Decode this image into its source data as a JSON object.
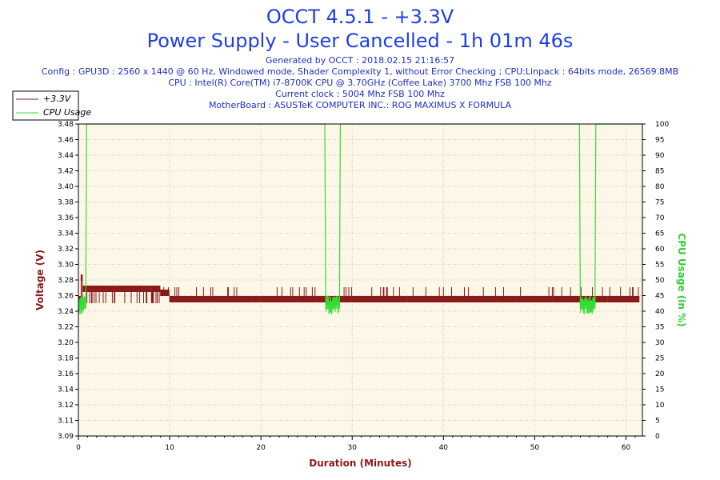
{
  "chart_data": {
    "type": "line",
    "title": "OCCT 4.5.1 - +3.3V",
    "subtitle": "Power Supply - User Cancelled - 1h 01m 46s",
    "info_lines": [
      "Generated by OCCT : 2018.02.15 21:16:57",
      "Config : GPU3D : 2560 x 1440 @ 60 Hz, Windowed mode, Shader Complexity 1, without Error Checking ; CPU:Linpack : 64bits mode, 26569.8MB",
      "CPU : Intel(R) Core(TM) i7-8700K CPU @ 3.70GHz (Coffee Lake) 3700 Mhz FSB 100 Mhz",
      "Current clock : 5004 Mhz FSB 100 Mhz",
      "MotherBoard : ASUSTeK COMPUTER INC.: ROG MAXIMUS X FORMULA"
    ],
    "xlabel": "Duration (Minutes)",
    "ylabel": "Voltage (V)",
    "y2label": "CPU Usage (in %)",
    "xlim": [
      0,
      61.8
    ],
    "ylim": [
      3.09,
      3.48
    ],
    "y2lim": [
      0,
      100
    ],
    "x_ticks": [
      "0",
      "10",
      "20",
      "30",
      "40",
      "50",
      "60"
    ],
    "y_ticks": [
      "3.09",
      "3.11",
      "3.12",
      "3.14",
      "3.16",
      "3.18",
      "3.20",
      "3.22",
      "3.24",
      "3.26",
      "3.28",
      "3.30",
      "3.32",
      "3.34",
      "3.36",
      "3.38",
      "3.40",
      "3.42",
      "3.44",
      "3.46",
      "3.48"
    ],
    "y2_ticks": [
      "0",
      "5",
      "10",
      "15",
      "20",
      "25",
      "30",
      "35",
      "40",
      "45",
      "50",
      "55",
      "60",
      "65",
      "70",
      "75",
      "80",
      "85",
      "90",
      "95",
      "100"
    ],
    "grid": true,
    "legend_position": "top-left",
    "series": [
      {
        "name": "+3.3V",
        "color": "#8b1a1a",
        "axis": "left",
        "x": [
          0,
          0.3,
          0.5,
          1,
          2,
          3,
          4,
          5,
          6,
          7,
          8,
          9,
          10,
          11,
          12,
          13,
          14,
          15,
          16,
          17,
          18,
          19,
          20,
          22,
          24,
          26,
          27.2,
          28.6,
          30,
          32,
          34,
          36,
          38,
          40,
          42,
          44,
          46,
          48,
          50,
          52,
          54,
          55,
          56.7,
          58,
          60,
          61.5
        ],
        "y": [
          3.262,
          3.29,
          3.276,
          3.276,
          3.276,
          3.276,
          3.276,
          3.276,
          3.276,
          3.276,
          3.276,
          3.27,
          3.262,
          3.262,
          3.262,
          3.262,
          3.262,
          3.262,
          3.262,
          3.262,
          3.262,
          3.262,
          3.262,
          3.262,
          3.262,
          3.262,
          3.262,
          3.262,
          3.262,
          3.262,
          3.262,
          3.262,
          3.262,
          3.262,
          3.262,
          3.262,
          3.262,
          3.262,
          3.262,
          3.262,
          3.262,
          3.262,
          3.262,
          3.262,
          3.262,
          3.262
        ]
      },
      {
        "name": "CPU Usage",
        "color": "#33dd33",
        "axis": "right",
        "x": [
          0,
          0.8,
          0.9,
          27.0,
          27.1,
          28.6,
          28.7,
          54.9,
          55.0,
          56.6,
          56.7,
          61.8
        ],
        "y": [
          41,
          41,
          100,
          100,
          41,
          41,
          100,
          100,
          41,
          41,
          100,
          100
        ]
      }
    ]
  }
}
